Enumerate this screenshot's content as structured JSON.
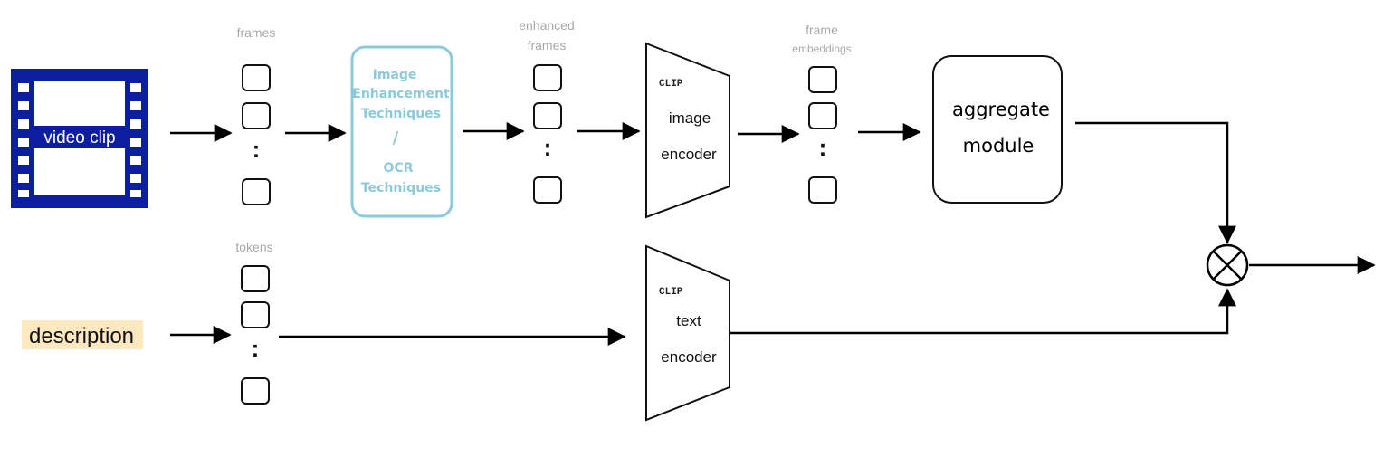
{
  "input_video": {
    "label": "video clip",
    "fill_color": "#0d1fa0"
  },
  "input_text": {
    "label": "description",
    "highlight_color": "#fde8c0"
  },
  "frames": {
    "label": "frames",
    "ellipsis": ":"
  },
  "tokens": {
    "label": "tokens",
    "ellipsis": ":"
  },
  "enhancement": {
    "line1": "Image",
    "line2": "Enhancement",
    "line3": "Techniques",
    "separator": "/",
    "line4": "OCR",
    "line5": "Techniques",
    "color": "#8cc9d9"
  },
  "enhanced_frames": {
    "line1": "enhanced",
    "line2": "frames",
    "ellipsis": ":"
  },
  "image_encoder": {
    "tag": "CLIP",
    "line1": "image",
    "line2": "encoder"
  },
  "frame_embeddings": {
    "line1": "frame",
    "line2": "embeddings",
    "ellipsis": ":"
  },
  "aggregate": {
    "line1": "aggregate",
    "line2": "module"
  },
  "text_encoder": {
    "tag": "CLIP",
    "line1": "text",
    "line2": "encoder"
  },
  "combine": {
    "symbol": "⊗",
    "icon": "multiply-circle-icon"
  }
}
